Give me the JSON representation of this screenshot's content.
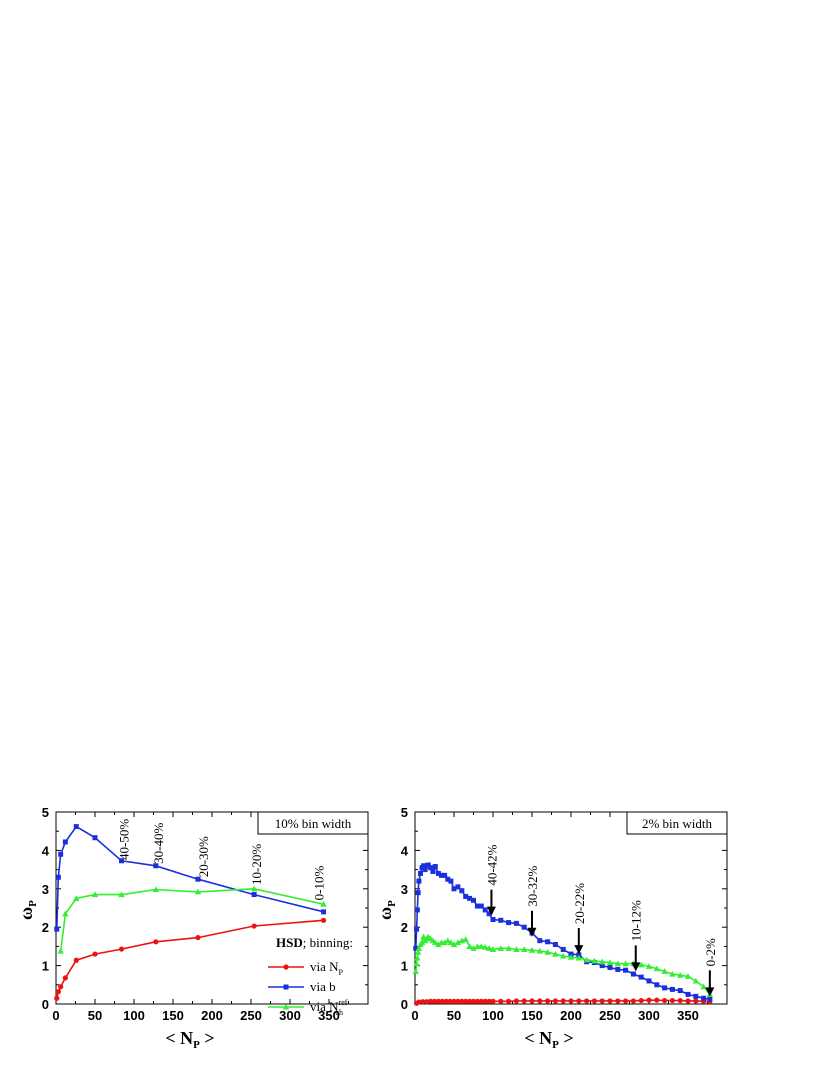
{
  "chart_data": [
    {
      "type": "line",
      "box_label": "10% bin width",
      "xlabel_main": "< N",
      "xlabel_sub": "P",
      "xlabel_end": " >",
      "ylabel_main": "ω",
      "ylabel_sub": "P",
      "xlim": [
        0,
        400
      ],
      "ylim": [
        0,
        5
      ],
      "xticks": [
        0,
        50,
        100,
        150,
        200,
        250,
        300,
        350
      ],
      "yticks": [
        0,
        1,
        2,
        3,
        4,
        5
      ],
      "centrality_labels": [
        {
          "text": "40-50%",
          "x": 88,
          "y": 3.75
        },
        {
          "text": "30-40%",
          "x": 132,
          "y": 3.65
        },
        {
          "text": "20-30%",
          "x": 190,
          "y": 3.3
        },
        {
          "text": "10-20%",
          "x": 258,
          "y": 3.1
        },
        {
          "text": "0-10%",
          "x": 338,
          "y": 2.7
        }
      ],
      "legend": {
        "title_bold": "HSD",
        "title_rest": "; binning:",
        "entries": [
          {
            "text": "via N",
            "sub": "P",
            "sup": "",
            "color": "#ee1111",
            "marker": "circle"
          },
          {
            "text": "via b",
            "sub": "",
            "sup": "",
            "color": "#1a2fdd",
            "marker": "square"
          },
          {
            "text": "via N",
            "sub": "ch",
            "sup": "ref",
            "color": "#33ee33",
            "marker": "triangle"
          }
        ]
      },
      "series": [
        {
          "color": "#ee1111",
          "marker": "circle",
          "x": [
            1,
            3,
            6,
            12,
            26,
            50,
            84,
            128,
            182,
            254,
            343
          ],
          "y": [
            0.15,
            0.32,
            0.45,
            0.68,
            1.14,
            1.3,
            1.43,
            1.62,
            1.73,
            2.03,
            2.18
          ]
        },
        {
          "color": "#1a2fdd",
          "marker": "square",
          "x": [
            1,
            3,
            6,
            12,
            26,
            50,
            84,
            128,
            182,
            254,
            343
          ],
          "y": [
            1.95,
            3.3,
            3.9,
            4.22,
            4.62,
            4.33,
            3.73,
            3.6,
            3.25,
            2.85,
            2.4
          ]
        },
        {
          "color": "#33ee33",
          "marker": "triangle",
          "x": [
            6,
            12,
            26,
            50,
            84,
            128,
            182,
            254,
            343
          ],
          "y": [
            1.38,
            2.35,
            2.75,
            2.85,
            2.85,
            2.98,
            2.92,
            3.0,
            2.6
          ]
        }
      ]
    },
    {
      "type": "line",
      "box_label": "2% bin width",
      "xlabel_main": "< N",
      "xlabel_sub": "P",
      "xlabel_end": " >",
      "ylabel_main": "ω",
      "ylabel_sub": "P",
      "xlim": [
        0,
        400
      ],
      "ylim": [
        0,
        5
      ],
      "xticks": [
        0,
        50,
        100,
        150,
        200,
        250,
        300,
        350
      ],
      "yticks": [
        0,
        1,
        2,
        3,
        4,
        5
      ],
      "centrality_arrows": [
        {
          "text": "40-42%",
          "x": 98,
          "y": 2.3
        },
        {
          "text": "30-32%",
          "x": 150,
          "y": 1.75
        },
        {
          "text": "20-22%",
          "x": 210,
          "y": 1.3
        },
        {
          "text": "10-12%",
          "x": 283,
          "y": 0.85
        },
        {
          "text": "0-2%",
          "x": 378,
          "y": 0.2
        }
      ],
      "series": [
        {
          "color": "#ee1111",
          "marker": "circle",
          "x": [
            2,
            5,
            10,
            15,
            20,
            25,
            30,
            35,
            40,
            45,
            50,
            55,
            60,
            65,
            70,
            75,
            80,
            85,
            90,
            95,
            100,
            110,
            120,
            130,
            140,
            150,
            160,
            170,
            180,
            190,
            200,
            210,
            220,
            230,
            240,
            250,
            260,
            270,
            280,
            290,
            300,
            310,
            320,
            330,
            340,
            350,
            360,
            370,
            378
          ],
          "y": [
            0.02,
            0.05,
            0.06,
            0.06,
            0.07,
            0.07,
            0.07,
            0.07,
            0.07,
            0.07,
            0.07,
            0.07,
            0.07,
            0.07,
            0.07,
            0.07,
            0.07,
            0.07,
            0.07,
            0.07,
            0.07,
            0.07,
            0.07,
            0.08,
            0.08,
            0.08,
            0.08,
            0.08,
            0.08,
            0.08,
            0.08,
            0.08,
            0.08,
            0.08,
            0.08,
            0.08,
            0.08,
            0.08,
            0.08,
            0.09,
            0.1,
            0.1,
            0.09,
            0.09,
            0.09,
            0.08,
            0.08,
            0.07,
            0.06
          ]
        },
        {
          "color": "#1a2fdd",
          "marker": "square",
          "x": [
            1,
            2,
            3,
            4,
            5,
            7,
            9,
            11,
            13,
            15,
            17,
            20,
            23,
            26,
            30,
            34,
            38,
            42,
            46,
            50,
            55,
            60,
            65,
            70,
            75,
            80,
            85,
            90,
            95,
            100,
            110,
            120,
            130,
            140,
            150,
            160,
            170,
            180,
            190,
            200,
            210,
            220,
            230,
            240,
            250,
            260,
            270,
            280,
            290,
            300,
            310,
            320,
            330,
            340,
            350,
            360,
            370,
            378
          ],
          "y": [
            1.45,
            1.95,
            2.45,
            2.9,
            3.2,
            3.4,
            3.55,
            3.6,
            3.5,
            3.6,
            3.62,
            3.55,
            3.45,
            3.58,
            3.4,
            3.35,
            3.35,
            3.25,
            3.2,
            3.0,
            3.05,
            2.95,
            2.8,
            2.75,
            2.7,
            2.55,
            2.55,
            2.45,
            2.35,
            2.2,
            2.18,
            2.12,
            2.1,
            2.0,
            1.85,
            1.65,
            1.62,
            1.55,
            1.42,
            1.3,
            1.28,
            1.1,
            1.08,
            1.0,
            0.95,
            0.9,
            0.88,
            0.78,
            0.7,
            0.6,
            0.5,
            0.42,
            0.38,
            0.35,
            0.25,
            0.2,
            0.15,
            0.12
          ]
        },
        {
          "color": "#33ee33",
          "marker": "triangle",
          "x": [
            1,
            2,
            3,
            4,
            5,
            7,
            9,
            11,
            13,
            15,
            17,
            20,
            23,
            26,
            30,
            34,
            38,
            42,
            46,
            50,
            55,
            60,
            65,
            70,
            75,
            80,
            85,
            90,
            95,
            100,
            110,
            120,
            130,
            140,
            150,
            160,
            170,
            180,
            190,
            200,
            210,
            220,
            230,
            240,
            250,
            260,
            270,
            280,
            290,
            300,
            310,
            320,
            330,
            340,
            350,
            360,
            370,
            378
          ],
          "y": [
            0.85,
            1.05,
            1.2,
            1.35,
            1.45,
            1.55,
            1.6,
            1.75,
            1.65,
            1.7,
            1.75,
            1.7,
            1.65,
            1.6,
            1.55,
            1.6,
            1.6,
            1.65,
            1.6,
            1.55,
            1.6,
            1.65,
            1.68,
            1.5,
            1.45,
            1.5,
            1.5,
            1.48,
            1.45,
            1.42,
            1.45,
            1.45,
            1.42,
            1.42,
            1.4,
            1.38,
            1.35,
            1.3,
            1.25,
            1.22,
            1.2,
            1.15,
            1.12,
            1.1,
            1.08,
            1.05,
            1.05,
            1.05,
            1.02,
            0.98,
            0.92,
            0.85,
            0.78,
            0.75,
            0.72,
            0.6,
            0.45,
            0.25
          ]
        }
      ]
    }
  ]
}
